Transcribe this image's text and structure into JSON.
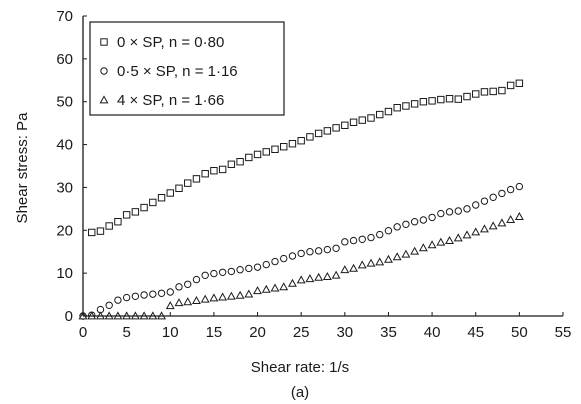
{
  "chart_data": {
    "type": "scatter",
    "caption": "(a)",
    "xlabel": "Shear rate: 1/s",
    "ylabel": "Shear stress: Pa",
    "xlim": [
      0,
      55
    ],
    "ylim": [
      0,
      70
    ],
    "xticks": [
      "0",
      "5",
      "10",
      "15",
      "20",
      "25",
      "30",
      "35",
      "40",
      "45",
      "50",
      "55"
    ],
    "yticks": [
      "0",
      "10",
      "20",
      "30",
      "40",
      "50",
      "60",
      "70"
    ],
    "grid": false,
    "legend_position": "top-left",
    "series": [
      {
        "name": "0 × SP, n = 0·80",
        "marker": "square",
        "points": [
          [
            1,
            19.5
          ],
          [
            2,
            19.8
          ],
          [
            3,
            21
          ],
          [
            4,
            22
          ],
          [
            5,
            23.6
          ],
          [
            6,
            24.3
          ],
          [
            7,
            25.3
          ],
          [
            8,
            26.5
          ],
          [
            9,
            27.6
          ],
          [
            10,
            28.7
          ],
          [
            11,
            29.8
          ],
          [
            12,
            31
          ],
          [
            13,
            32
          ],
          [
            14,
            33.2
          ],
          [
            15,
            33.9
          ],
          [
            16,
            34.2
          ],
          [
            17,
            35.4
          ],
          [
            18,
            36
          ],
          [
            19,
            37
          ],
          [
            20,
            37.7
          ],
          [
            21,
            38.3
          ],
          [
            22,
            38.9
          ],
          [
            23,
            39.5
          ],
          [
            24,
            40.2
          ],
          [
            25,
            40.9
          ],
          [
            26,
            41.8
          ],
          [
            27,
            42.6
          ],
          [
            28,
            43.2
          ],
          [
            29,
            43.9
          ],
          [
            30,
            44.5
          ],
          [
            31,
            45.2
          ],
          [
            32,
            45.7
          ],
          [
            33,
            46.2
          ],
          [
            34,
            47
          ],
          [
            35,
            47.7
          ],
          [
            36,
            48.6
          ],
          [
            37,
            49
          ],
          [
            38,
            49.5
          ],
          [
            39,
            50
          ],
          [
            40,
            50.2
          ],
          [
            41,
            50.5
          ],
          [
            42,
            50.7
          ],
          [
            43,
            50.6
          ],
          [
            44,
            51.2
          ],
          [
            45,
            51.8
          ],
          [
            46,
            52.3
          ],
          [
            47,
            52.4
          ],
          [
            48,
            52.6
          ],
          [
            49,
            53.8
          ],
          [
            50,
            54.3
          ]
        ]
      },
      {
        "name": "0·5 × SP, n = 1·16",
        "marker": "circle",
        "points": [
          [
            0,
            0
          ],
          [
            1,
            0.2
          ],
          [
            2,
            1.5
          ],
          [
            3,
            2.5
          ],
          [
            4,
            3.7
          ],
          [
            5,
            4.3
          ],
          [
            6,
            4.6
          ],
          [
            7,
            4.9
          ],
          [
            8,
            5.1
          ],
          [
            9,
            5.3
          ],
          [
            10,
            5.6
          ],
          [
            11,
            6.8
          ],
          [
            12,
            7.4
          ],
          [
            13,
            8.5
          ],
          [
            14,
            9.5
          ],
          [
            15,
            9.9
          ],
          [
            16,
            10.2
          ],
          [
            17,
            10.4
          ],
          [
            18,
            10.8
          ],
          [
            19,
            11.1
          ],
          [
            20,
            11.4
          ],
          [
            21,
            12
          ],
          [
            22,
            12.7
          ],
          [
            23,
            13.4
          ],
          [
            24,
            14
          ],
          [
            25,
            14.6
          ],
          [
            26,
            15
          ],
          [
            27,
            15.2
          ],
          [
            28,
            15.5
          ],
          [
            29,
            15.8
          ],
          [
            30,
            17.3
          ],
          [
            31,
            17.6
          ],
          [
            32,
            17.9
          ],
          [
            33,
            18.3
          ],
          [
            34,
            19
          ],
          [
            35,
            19.9
          ],
          [
            36,
            20.8
          ],
          [
            37,
            21.4
          ],
          [
            38,
            22
          ],
          [
            39,
            22.4
          ],
          [
            40,
            23
          ],
          [
            41,
            23.9
          ],
          [
            42,
            24.3
          ],
          [
            43,
            24.5
          ],
          [
            44,
            25
          ],
          [
            45,
            25.9
          ],
          [
            46,
            26.8
          ],
          [
            47,
            27.7
          ],
          [
            48,
            28.6
          ],
          [
            49,
            29.5
          ],
          [
            50,
            30.2
          ]
        ]
      },
      {
        "name": "4 × SP, n = 1·66",
        "marker": "triangle",
        "points": [
          [
            0,
            0
          ],
          [
            1,
            0
          ],
          [
            2,
            0
          ],
          [
            3,
            0
          ],
          [
            4,
            0
          ],
          [
            5,
            0
          ],
          [
            6,
            0
          ],
          [
            7,
            0
          ],
          [
            8,
            0
          ],
          [
            9,
            0
          ],
          [
            10,
            2.4
          ],
          [
            11,
            3.1
          ],
          [
            12,
            3.3
          ],
          [
            13,
            3.6
          ],
          [
            14,
            3.9
          ],
          [
            15,
            4.2
          ],
          [
            16,
            4.4
          ],
          [
            17,
            4.6
          ],
          [
            18,
            4.8
          ],
          [
            19,
            5.1
          ],
          [
            20,
            5.9
          ],
          [
            21,
            6.2
          ],
          [
            22,
            6.5
          ],
          [
            23,
            6.8
          ],
          [
            24,
            7.6
          ],
          [
            25,
            8.4
          ],
          [
            26,
            8.7
          ],
          [
            27,
            9
          ],
          [
            28,
            9.2
          ],
          [
            29,
            9.5
          ],
          [
            30,
            10.8
          ],
          [
            31,
            11.1
          ],
          [
            32,
            11.9
          ],
          [
            33,
            12.3
          ],
          [
            34,
            12.6
          ],
          [
            35,
            13.2
          ],
          [
            36,
            13.8
          ],
          [
            37,
            14.4
          ],
          [
            38,
            15.1
          ],
          [
            39,
            15.9
          ],
          [
            40,
            16.6
          ],
          [
            41,
            17.2
          ],
          [
            42,
            17.6
          ],
          [
            43,
            18.2
          ],
          [
            44,
            18.9
          ],
          [
            45,
            19.6
          ],
          [
            46,
            20.3
          ],
          [
            47,
            21
          ],
          [
            48,
            21.7
          ],
          [
            49,
            22.5
          ],
          [
            50,
            23.2
          ]
        ]
      }
    ]
  }
}
